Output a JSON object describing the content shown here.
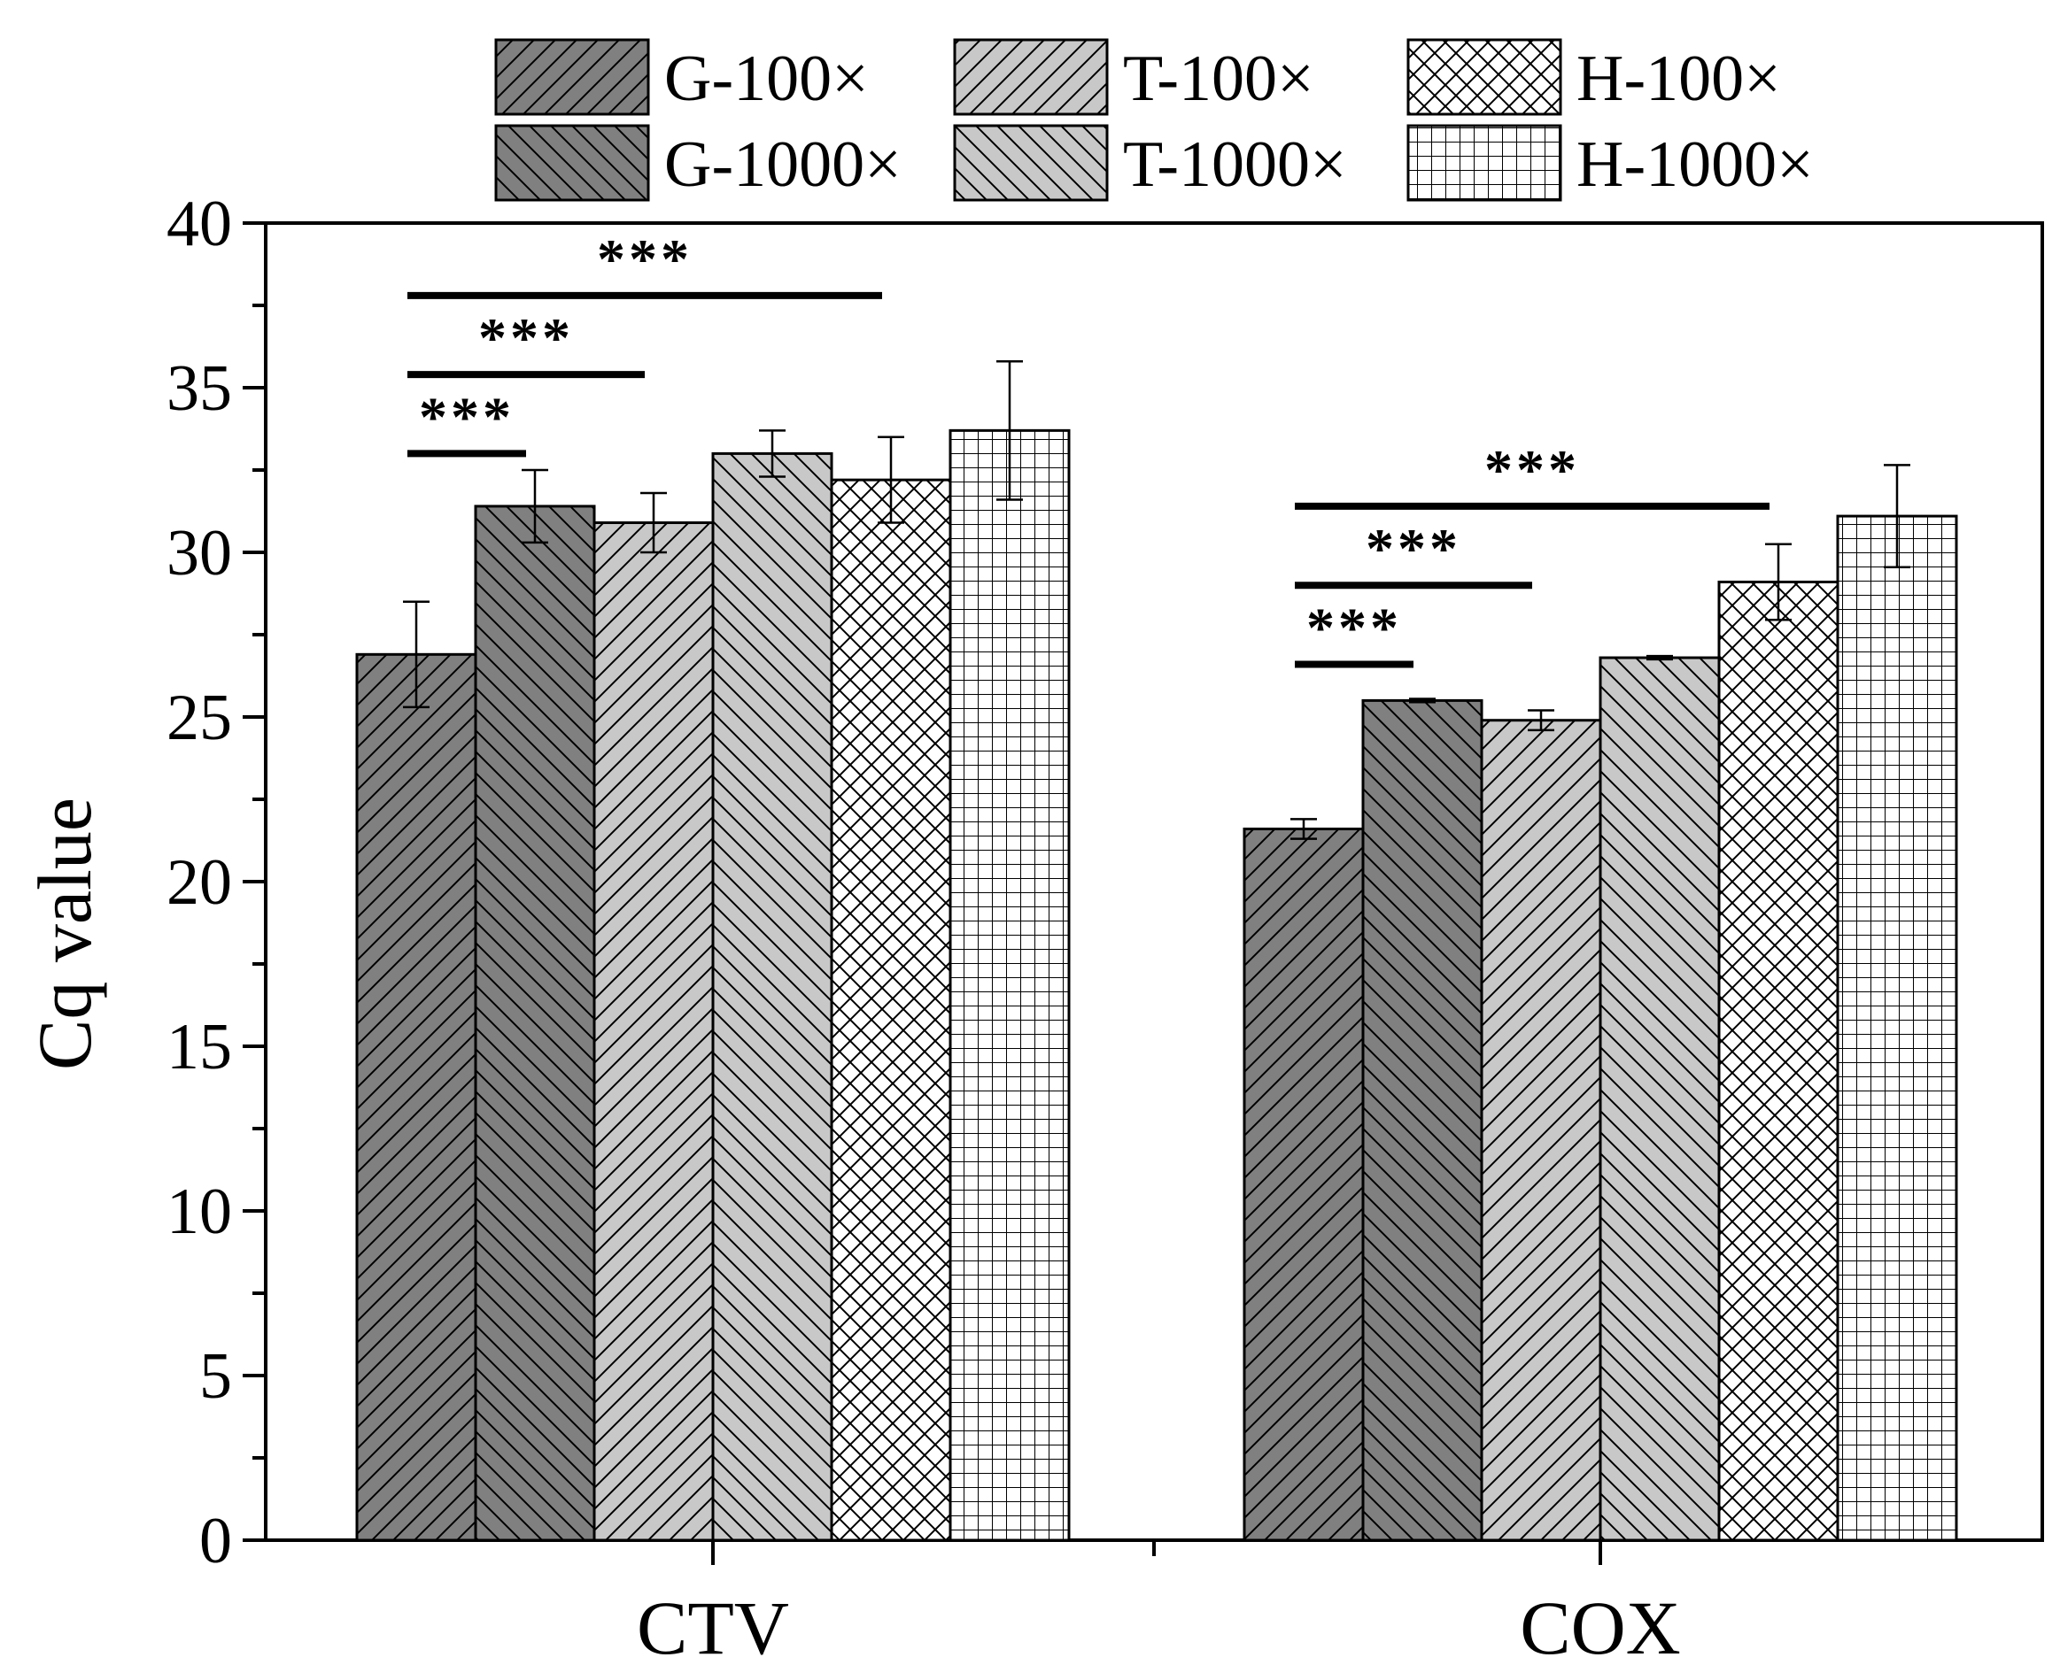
{
  "chart_data": {
    "type": "bar",
    "categories": [
      "CTV",
      "COX"
    ],
    "ylabel": "Cq value",
    "xlabel": "",
    "ylim": [
      0,
      40
    ],
    "yticks": [
      "0",
      "5",
      "10",
      "15",
      "20",
      "25",
      "30",
      "35",
      "40"
    ],
    "series": [
      {
        "name": "G-100×",
        "values": [
          26.9,
          21.6
        ],
        "errors": [
          1.6,
          0.3
        ],
        "fill": "#808080",
        "pattern": "fwd"
      },
      {
        "name": "G-1000×",
        "values": [
          31.4,
          25.5
        ],
        "errors": [
          1.1,
          0.05
        ],
        "fill": "#808080",
        "pattern": "back"
      },
      {
        "name": "T-100×",
        "values": [
          30.9,
          24.9
        ],
        "errors": [
          0.9,
          0.3
        ],
        "fill": "#c8c8c8",
        "pattern": "fwd"
      },
      {
        "name": "T-1000×",
        "values": [
          33.0,
          26.8
        ],
        "errors": [
          0.7,
          0.05
        ],
        "fill": "#c8c8c8",
        "pattern": "back"
      },
      {
        "name": "H-100×",
        "values": [
          32.2,
          29.1
        ],
        "errors": [
          1.3,
          1.15
        ],
        "fill": "#ffffff",
        "pattern": "cross"
      },
      {
        "name": "H-1000×",
        "values": [
          33.7,
          31.1
        ],
        "errors": [
          2.1,
          1.55
        ],
        "fill": "#ffffff",
        "pattern": "grid"
      }
    ],
    "significance": [
      {
        "group": 0,
        "from": 0,
        "to": 1,
        "level": 33.0,
        "label": "***"
      },
      {
        "group": 0,
        "from": 0,
        "to": 2,
        "level": 35.4,
        "label": "***"
      },
      {
        "group": 0,
        "from": 0,
        "to": 4,
        "level": 37.8,
        "label": "***"
      },
      {
        "group": 1,
        "from": 0,
        "to": 1,
        "level": 26.6,
        "label": "***"
      },
      {
        "group": 1,
        "from": 0,
        "to": 2,
        "level": 29.0,
        "label": "***"
      },
      {
        "group": 1,
        "from": 0,
        "to": 4,
        "level": 31.4,
        "label": "***"
      }
    ],
    "legend_position": "top",
    "grid": false
  }
}
